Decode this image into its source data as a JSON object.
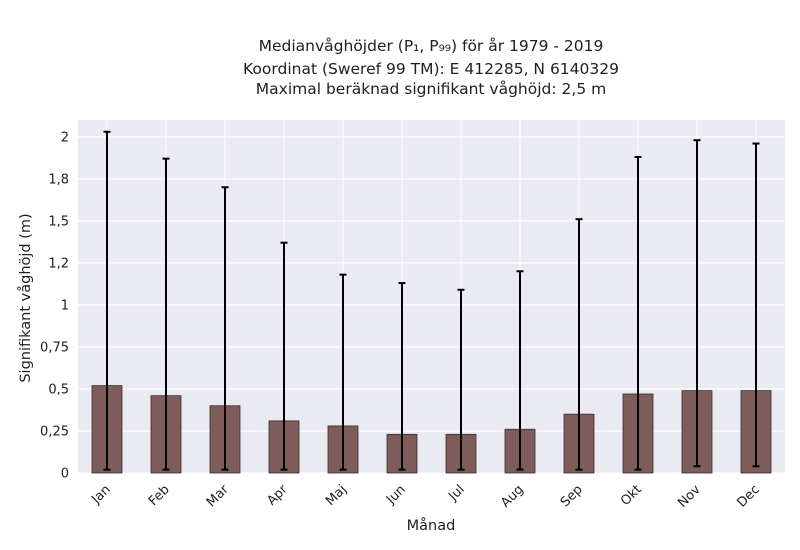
{
  "chart_data": {
    "type": "bar",
    "title_lines": [
      "Medianvåghöjder (P₁, P₉₉) för år 1979 - 2019",
      "Koordinat (Sweref 99 TM): E 412285, N 6140329",
      "Maximal beräknad signifikant våghöjd: 2,5 m"
    ],
    "xlabel": "Månad",
    "ylabel": "Signifikant våghöjd (m)",
    "categories": [
      "Jan",
      "Feb",
      "Mar",
      "Apr",
      "Maj",
      "Jun",
      "Jul",
      "Aug",
      "Sep",
      "Okt",
      "Nov",
      "Dec"
    ],
    "series": [
      {
        "values": [
          0.52,
          0.46,
          0.4,
          0.31,
          0.28,
          0.23,
          0.23,
          0.26,
          0.35,
          0.47,
          0.49,
          0.49
        ],
        "p1": [
          0.02,
          0.02,
          0.02,
          0.02,
          0.02,
          0.02,
          0.02,
          0.02,
          0.02,
          0.02,
          0.04,
          0.04
        ],
        "p99": [
          2.03,
          1.87,
          1.7,
          1.37,
          1.18,
          1.13,
          1.09,
          1.2,
          1.51,
          1.88,
          1.98,
          1.96
        ]
      }
    ],
    "yticks": [
      0,
      0.25,
      0.5,
      0.75,
      1,
      1.25,
      1.5,
      1.75,
      2
    ],
    "ytick_labels": [
      "0",
      "0,25",
      "0,5",
      "0,75",
      "1",
      "1,2",
      "1,5",
      "1,8",
      "2"
    ],
    "ylim": [
      0,
      2.1
    ],
    "grid": true,
    "colors": {
      "bar": "#7e5c5b",
      "bar_edge": "#3a2a2a",
      "plot_bg": "#eaeaf2",
      "grid": "#ffffff",
      "errorbar": "#000000"
    }
  }
}
